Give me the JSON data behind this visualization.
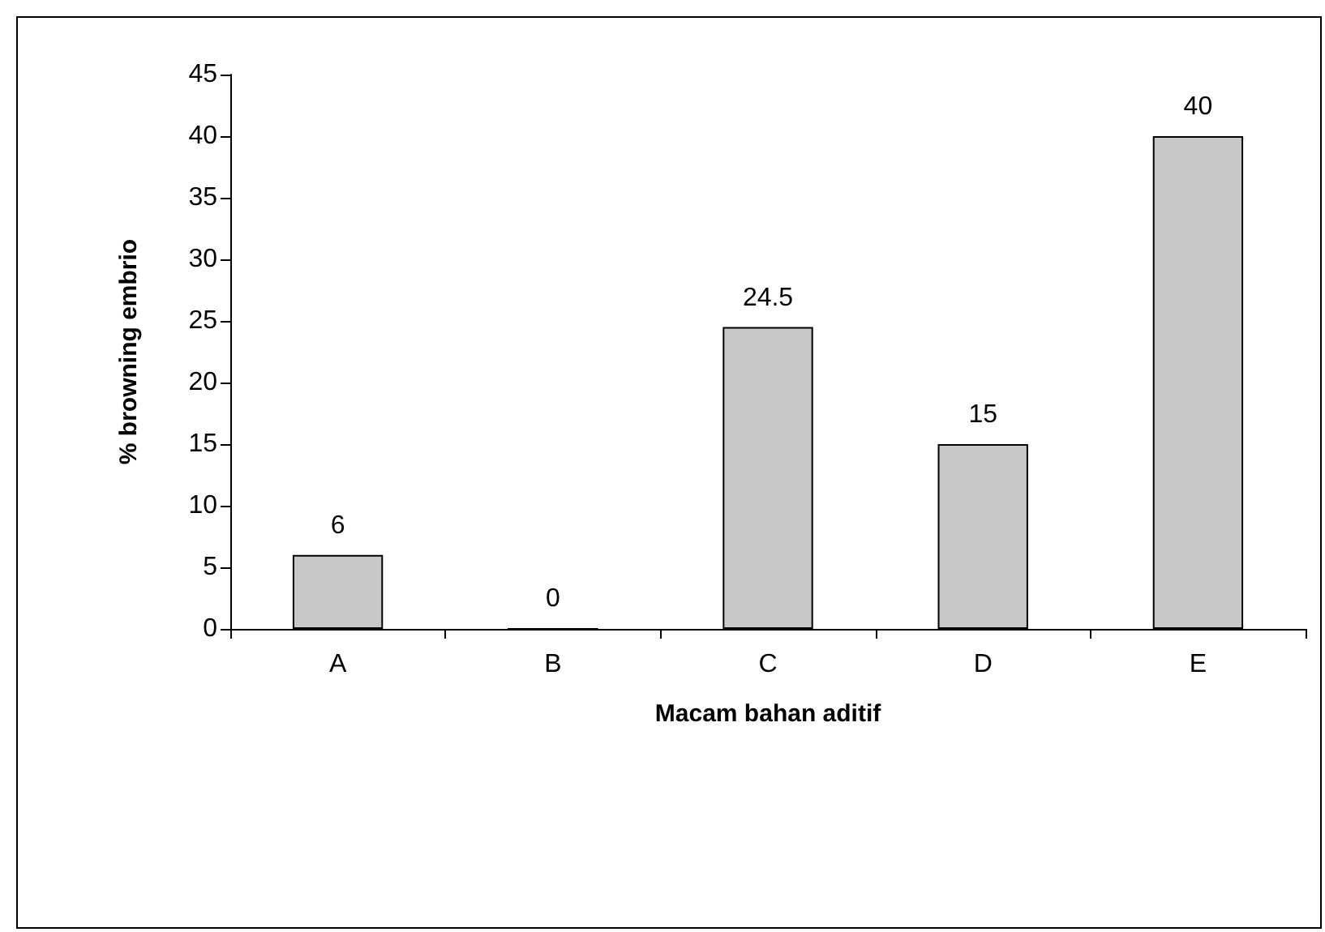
{
  "chart_data": {
    "type": "bar",
    "xlabel": "Macam bahan aditif",
    "ylabel": "% browning embrio",
    "categories": [
      "A",
      "B",
      "C",
      "D",
      "E"
    ],
    "values": [
      6,
      0,
      24.5,
      15,
      40
    ],
    "color": "#c8c8c8",
    "ylim": [
      0,
      45
    ],
    "yticks": [
      0,
      5,
      10,
      15,
      20,
      25,
      30,
      35,
      40,
      45
    ],
    "grid": false,
    "data_labels": true
  }
}
